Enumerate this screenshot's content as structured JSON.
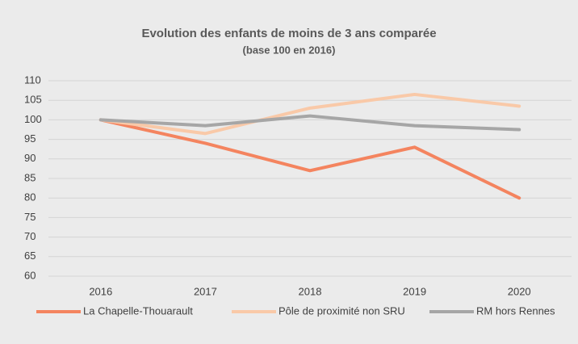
{
  "chart_data": {
    "type": "line",
    "title": "Evolution des enfants de moins de 3 ans comparée",
    "subtitle": "(base 100 en 2016)",
    "categories": [
      "2016",
      "2017",
      "2018",
      "2019",
      "2020"
    ],
    "series": [
      {
        "name": "La Chapelle-Thouarault",
        "color": "#f4845f",
        "values": [
          100,
          94,
          87,
          93,
          80
        ]
      },
      {
        "name": "Pôle de proximité non SRU",
        "color": "#f9c9a8",
        "values": [
          100,
          96.5,
          103,
          106.5,
          103.5
        ]
      },
      {
        "name": "RM hors Rennes",
        "color": "#a6a6a6",
        "values": [
          100,
          98.5,
          101,
          98.5,
          97.5
        ]
      }
    ],
    "ylim": [
      60,
      110
    ],
    "yticks": [
      60,
      65,
      70,
      75,
      80,
      85,
      90,
      95,
      100,
      105,
      110
    ],
    "grid": true,
    "legend": "bottom"
  }
}
